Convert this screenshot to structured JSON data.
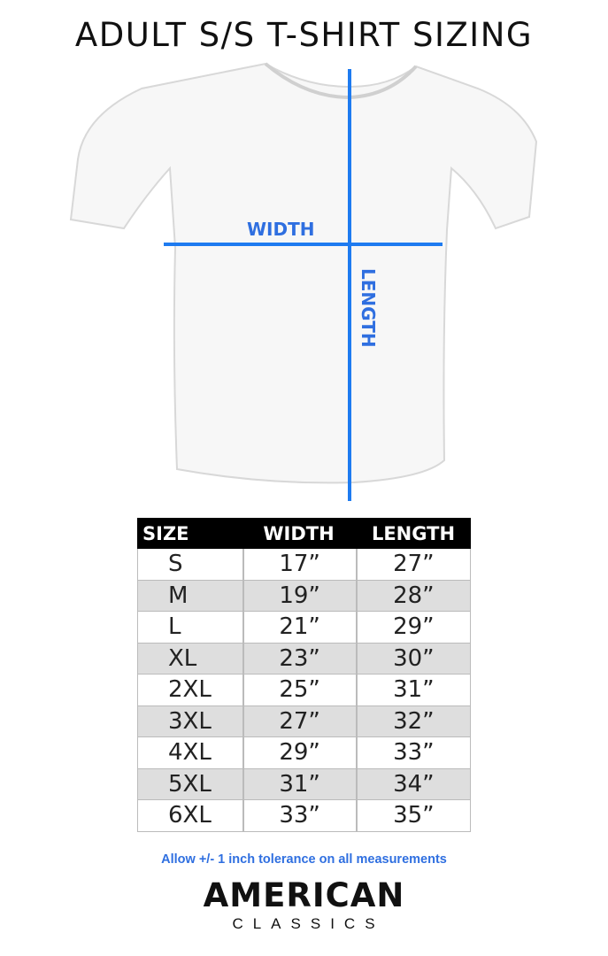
{
  "title": "ADULT S/S T-SHIRT SIZING",
  "diagram": {
    "width_label": "WIDTH",
    "length_label": "LENGTH",
    "line_color": "#1e7bf0"
  },
  "table": {
    "headers": [
      "SIZE",
      "WIDTH",
      "LENGTH"
    ],
    "rows": [
      [
        "S",
        "17”",
        "27”"
      ],
      [
        "M",
        "19”",
        "28”"
      ],
      [
        "L",
        "21”",
        "29”"
      ],
      [
        "XL",
        "23”",
        "30”"
      ],
      [
        "2XL",
        "25”",
        "31”"
      ],
      [
        "3XL",
        "27”",
        "32”"
      ],
      [
        "4XL",
        "29”",
        "33”"
      ],
      [
        "5XL",
        "31”",
        "34”"
      ],
      [
        "6XL",
        "33”",
        "35”"
      ]
    ]
  },
  "note": "Allow +/- 1 inch tolerance on all measurements",
  "brand": {
    "line1": "AMERICAN",
    "line2": "CLASSICS"
  }
}
